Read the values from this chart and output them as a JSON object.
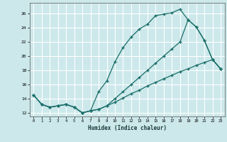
{
  "xlabel": "Humidex (Indice chaleur)",
  "bg_color": "#cce8ea",
  "grid_color": "#ffffff",
  "line_color": "#1a6e6a",
  "xlim": [
    -0.5,
    23.5
  ],
  "ylim": [
    11.5,
    27.5
  ],
  "xticks": [
    0,
    1,
    2,
    3,
    4,
    5,
    6,
    7,
    8,
    9,
    10,
    11,
    12,
    13,
    14,
    15,
    16,
    17,
    18,
    19,
    20,
    21,
    22,
    23
  ],
  "yticks": [
    12,
    14,
    16,
    18,
    20,
    22,
    24,
    26
  ],
  "curve1_x": [
    0,
    1,
    2,
    3,
    4,
    5,
    6,
    7,
    8,
    9,
    10,
    11,
    12,
    13,
    14,
    15,
    16,
    17,
    18,
    19,
    20,
    21,
    22,
    23
  ],
  "curve1_y": [
    14.5,
    13.2,
    12.8,
    13.0,
    13.2,
    12.8,
    12.0,
    12.3,
    15.0,
    16.5,
    19.2,
    21.2,
    22.7,
    23.8,
    24.5,
    25.7,
    25.9,
    26.1,
    26.6,
    25.1,
    24.1,
    22.2,
    19.5,
    18.2
  ],
  "curve2_x": [
    0,
    1,
    2,
    3,
    4,
    5,
    6,
    7,
    8,
    9,
    10,
    11,
    12,
    13,
    14,
    15,
    16,
    17,
    18,
    19,
    20,
    21,
    22,
    23
  ],
  "curve2_y": [
    14.5,
    13.2,
    12.8,
    13.0,
    13.2,
    12.8,
    12.0,
    12.3,
    12.5,
    13.0,
    13.5,
    14.1,
    14.7,
    15.2,
    15.8,
    16.3,
    16.8,
    17.3,
    17.8,
    18.2,
    18.7,
    19.1,
    19.5,
    18.2
  ],
  "curve3_x": [
    0,
    1,
    2,
    3,
    4,
    5,
    6,
    7,
    8,
    9,
    10,
    11,
    12,
    13,
    14,
    15,
    16,
    17,
    18,
    19,
    20,
    21,
    22,
    23
  ],
  "curve3_y": [
    14.5,
    13.2,
    12.8,
    13.0,
    13.2,
    12.8,
    12.0,
    12.3,
    12.5,
    13.0,
    14.0,
    15.0,
    16.0,
    17.0,
    18.0,
    19.0,
    20.0,
    21.0,
    22.0,
    25.1,
    24.1,
    22.2,
    19.5,
    18.2
  ]
}
